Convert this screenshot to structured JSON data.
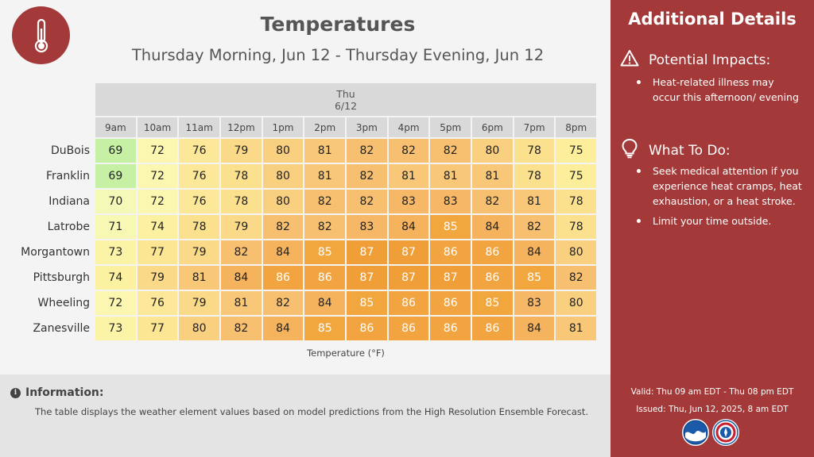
{
  "header": {
    "title": "Temperatures",
    "subtitle": "Thursday Morning, Jun 12 - Thursday Evening, Jun 12"
  },
  "table": {
    "day_label": "Thu",
    "date_label": "6/12",
    "hours": [
      "9am",
      "10am",
      "11am",
      "12pm",
      "1pm",
      "2pm",
      "3pm",
      "4pm",
      "5pm",
      "6pm",
      "7pm",
      "8pm"
    ],
    "rows": [
      {
        "location": "DuBois",
        "values": [
          69,
          72,
          76,
          79,
          80,
          81,
          82,
          82,
          82,
          80,
          78,
          75
        ]
      },
      {
        "location": "Franklin",
        "values": [
          69,
          72,
          76,
          78,
          80,
          81,
          82,
          81,
          81,
          81,
          78,
          75
        ]
      },
      {
        "location": "Indiana",
        "values": [
          70,
          72,
          76,
          78,
          80,
          82,
          82,
          83,
          83,
          82,
          81,
          78
        ]
      },
      {
        "location": "Latrobe",
        "values": [
          71,
          74,
          78,
          79,
          82,
          82,
          83,
          84,
          85,
          84,
          82,
          78
        ]
      },
      {
        "location": "Morgantown",
        "values": [
          73,
          77,
          79,
          82,
          84,
          85,
          87,
          87,
          86,
          86,
          84,
          80
        ]
      },
      {
        "location": "Pittsburgh",
        "values": [
          74,
          79,
          81,
          84,
          86,
          86,
          87,
          87,
          87,
          86,
          85,
          82
        ]
      },
      {
        "location": "Wheeling",
        "values": [
          72,
          76,
          79,
          81,
          82,
          84,
          85,
          86,
          86,
          85,
          83,
          80
        ]
      },
      {
        "location": "Zanesville",
        "values": [
          73,
          77,
          80,
          82,
          84,
          85,
          86,
          86,
          86,
          86,
          84,
          81
        ]
      }
    ],
    "legend": "Temperature (°F)"
  },
  "info": {
    "heading": "Information:",
    "text": "The table displays the weather element values based on model predictions from the High Resolution Ensemble Forecast."
  },
  "sidebar": {
    "title": "Additional Details",
    "impacts_heading": "Potential Impacts:",
    "impacts": [
      "Heat-related illness may occur this afternoon/ evening"
    ],
    "todo_heading": "What To Do:",
    "todo": [
      "Seek medical attention if you experience heat cramps, heat exhaustion, or a heat stroke.",
      "Limit your time outside."
    ],
    "valid": "Valid: Thu 09 am EDT - Thu 08 pm EDT",
    "issued": "Issued: Thu, Jun 12, 2025, 8 am EDT"
  },
  "colors": {
    "brand_red": "#a33a39",
    "temp_scale": {
      "69": "#c6f0a4",
      "70": "#f5f9b8",
      "71": "#f7f8b4",
      "72": "#fbf7b0",
      "73": "#fbf4a6",
      "74": "#fcf1a1",
      "75": "#fcee9a",
      "76": "#fce898",
      "77": "#fce593",
      "78": "#fbe18e",
      "79": "#fad988",
      "80": "#f9cf80",
      "81": "#f8c878",
      "82": "#f7c070",
      "83": "#f6b866",
      "84": "#f5b35e",
      "85": "#f2a63e",
      "86": "#f2a440",
      "87": "#f09e38"
    }
  },
  "icons": {
    "logo": "thermometer-icon",
    "impacts": "warning-triangle-icon",
    "todo": "lightbulb-icon",
    "info": "info-icon"
  }
}
